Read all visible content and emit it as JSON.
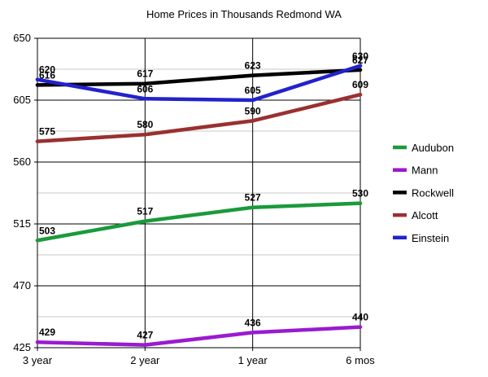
{
  "chart_data": {
    "type": "line",
    "title": "Home Prices in Thousands Redmond WA",
    "xlabel": "",
    "ylabel": "",
    "categories": [
      "3 year",
      "2 year",
      "1 year",
      "6 mos"
    ],
    "ylim": [
      425,
      650
    ],
    "y_ticks": [
      "650",
      "605",
      "560",
      "515",
      "470",
      "425"
    ],
    "y_tick_values": [
      650,
      605,
      560,
      515,
      470,
      425
    ],
    "grid": true,
    "legend_position": "right",
    "series": [
      {
        "name": "Audubon",
        "color": "#1a9a3a",
        "values": [
          503,
          517,
          527,
          530
        ],
        "labels": [
          "503",
          "517",
          "527",
          "530"
        ]
      },
      {
        "name": "Mann",
        "color": "#9a1ad0",
        "values": [
          429,
          427,
          436,
          440
        ],
        "labels": [
          "429",
          "427",
          "436",
          "440"
        ]
      },
      {
        "name": "Rockwell",
        "color": "#000000",
        "values": [
          616,
          617,
          623,
          627
        ],
        "labels": [
          "616",
          "617",
          "623",
          "627"
        ]
      },
      {
        "name": "Alcott",
        "color": "#9a3030",
        "values": [
          575,
          580,
          590,
          609
        ],
        "labels": [
          "575",
          "580",
          "590",
          "609"
        ]
      },
      {
        "name": "Einstein",
        "color": "#2222cc",
        "values": [
          620,
          606,
          605,
          630
        ],
        "labels": [
          "620",
          "606",
          "605",
          "630"
        ]
      }
    ]
  }
}
